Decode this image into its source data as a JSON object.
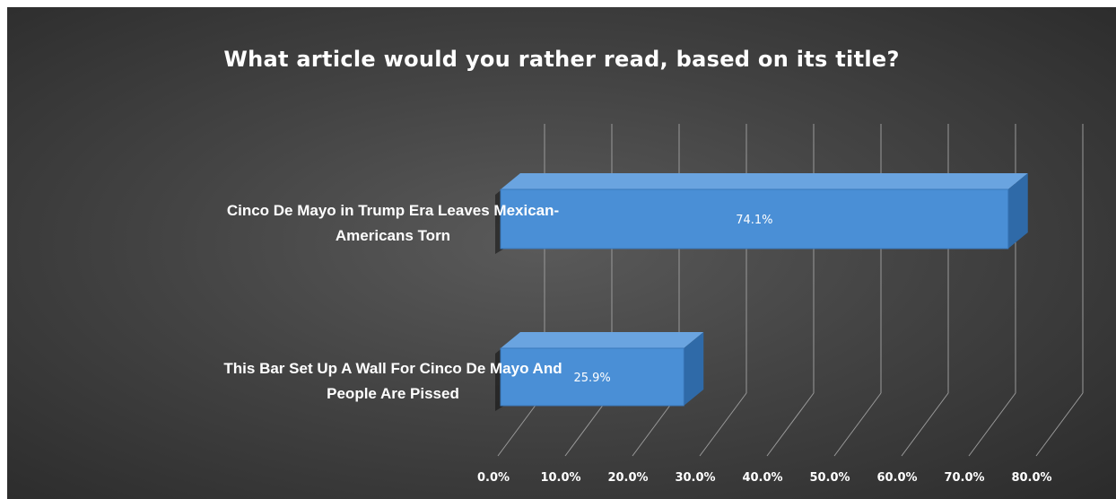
{
  "chart_data": {
    "type": "bar",
    "orientation": "horizontal",
    "title": "What article would you rather read, based on its title?",
    "categories": [
      [
        "Cinco De Mayo in Trump Era Leaves Mexican-",
        "Americans Torn"
      ],
      [
        "This Bar Set Up A Wall For Cinco De Mayo And",
        "People Are Pissed"
      ]
    ],
    "values": [
      74.1,
      25.9
    ],
    "data_labels": [
      "74.1%",
      "25.9%"
    ],
    "x_ticks": [
      "0.0%",
      "10.0%",
      "20.0%",
      "30.0%",
      "40.0%",
      "50.0%",
      "60.0%",
      "70.0%",
      "80.0%"
    ],
    "xlim": [
      0,
      80
    ],
    "grid": true,
    "legend": "none",
    "style": "3d",
    "colors": {
      "background": "#3f3f3f",
      "bar_front": "#4a8fd6",
      "bar_top": "#6aa4e0",
      "bar_side": "#2f6aa8",
      "gridline": "#9a9a9a",
      "text": "#ffffff"
    }
  }
}
